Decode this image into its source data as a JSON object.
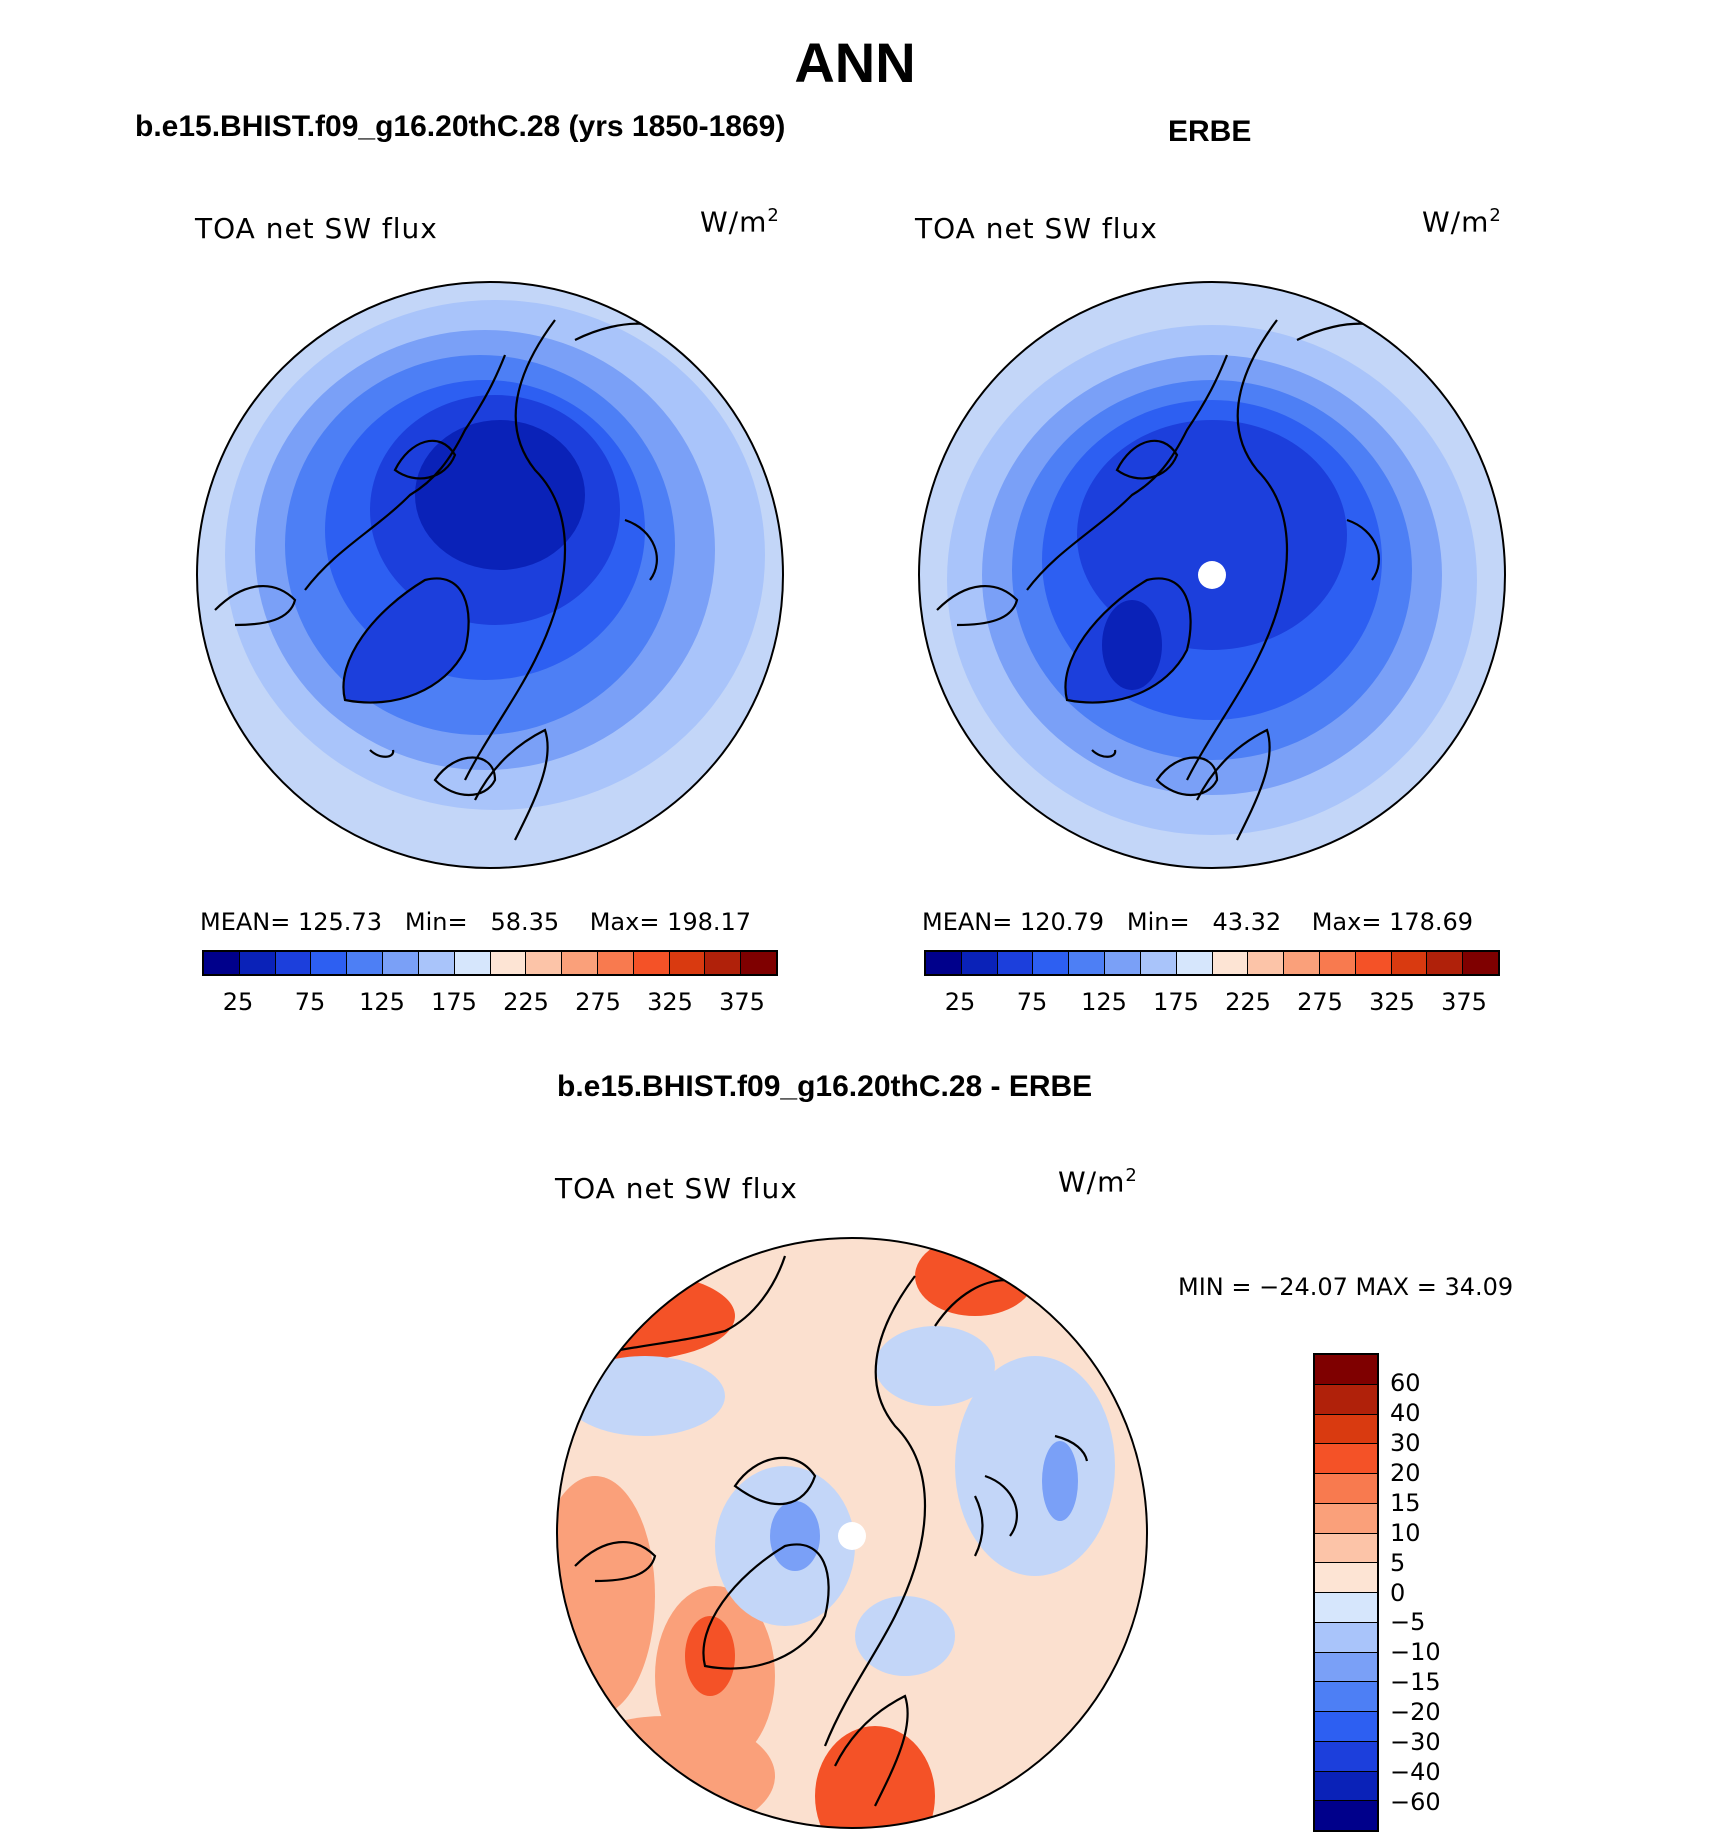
{
  "title": "ANN",
  "panel_left": {
    "title": "b.e15.BHIST.f09_g16.20thC.28 (yrs 1850-1869)",
    "variable": "TOA net SW flux",
    "units": "W/m",
    "units_exp": "2",
    "mean_label": "MEAN=",
    "mean": "125.73",
    "min_label": "Min=",
    "min": "58.35",
    "max_label": "Max=",
    "max": "198.17"
  },
  "panel_right": {
    "title": "ERBE",
    "variable": "TOA net SW flux",
    "units": "W/m",
    "units_exp": "2",
    "mean_label": "MEAN=",
    "mean": "120.79",
    "min_label": "Min=",
    "min": "43.32",
    "max_label": "Max=",
    "max": "178.69"
  },
  "panel_diff": {
    "title": "b.e15.BHIST.f09_g16.20thC.28 - ERBE",
    "variable": "TOA net SW flux",
    "units": "W/m",
    "units_exp": "2",
    "minmax_text": "MIN = −24.07 MAX =   34.09"
  },
  "colorbar_main": {
    "colors": [
      "#00008b",
      "#0a22b8",
      "#1c3fdc",
      "#2d5ff2",
      "#4d7ff5",
      "#7aa0f7",
      "#a9c4fa",
      "#d6e6fc",
      "#fde4d4",
      "#fcc4a8",
      "#faa07a",
      "#f87a4f",
      "#f45227",
      "#d93a10",
      "#b0210a",
      "#7f0000"
    ],
    "tick_labels": [
      "25",
      "75",
      "125",
      "175",
      "225",
      "275",
      "325",
      "375"
    ]
  },
  "colorbar_diff": {
    "colors": [
      "#7f0000",
      "#b0210a",
      "#d93a10",
      "#f45227",
      "#f87a4f",
      "#faa07a",
      "#fcc4a8",
      "#fde4d4",
      "#d6e6fc",
      "#a9c4fa",
      "#7aa0f7",
      "#4d7ff5",
      "#2d5ff2",
      "#1c3fdc",
      "#0a22b8",
      "#00008b"
    ],
    "tick_labels": [
      "60",
      "40",
      "30",
      "20",
      "15",
      "10",
      "5",
      "0",
      "−5",
      "−10",
      "−15",
      "−20",
      "−30",
      "−40",
      "−60"
    ]
  },
  "map_colors": {
    "ocean_outer": "#c3d6f8",
    "band1": "#a9c4fa",
    "band2": "#7aa0f7",
    "band3": "#4d7ff5",
    "band4": "#2d5ff2",
    "band5": "#1c3fdc",
    "band6": "#0a22b8",
    "diff_base": "#fbe0cf",
    "diff_warm1": "#faa07a",
    "diff_warm2": "#f45227",
    "diff_cool1": "#c3d6f8",
    "diff_cool2": "#7aa0f7"
  }
}
